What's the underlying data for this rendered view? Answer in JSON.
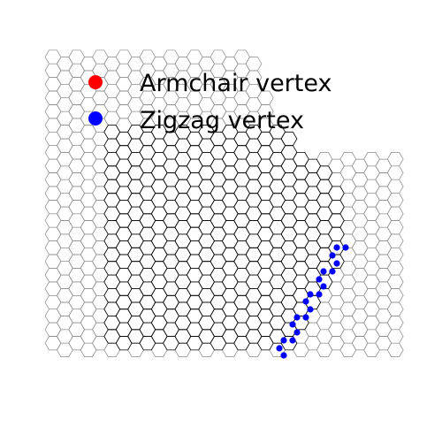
{
  "legend": {
    "armchair_label": "Armchair vertex",
    "zigzag_label": "Zigzag vertex",
    "armchair_color": "#ff0000",
    "zigzag_color": "#0000ff"
  },
  "lattice": {
    "edge_color_light": "#8a8a8a",
    "edge_color_dark": "#000000",
    "vertex_color": "#0000ff"
  }
}
